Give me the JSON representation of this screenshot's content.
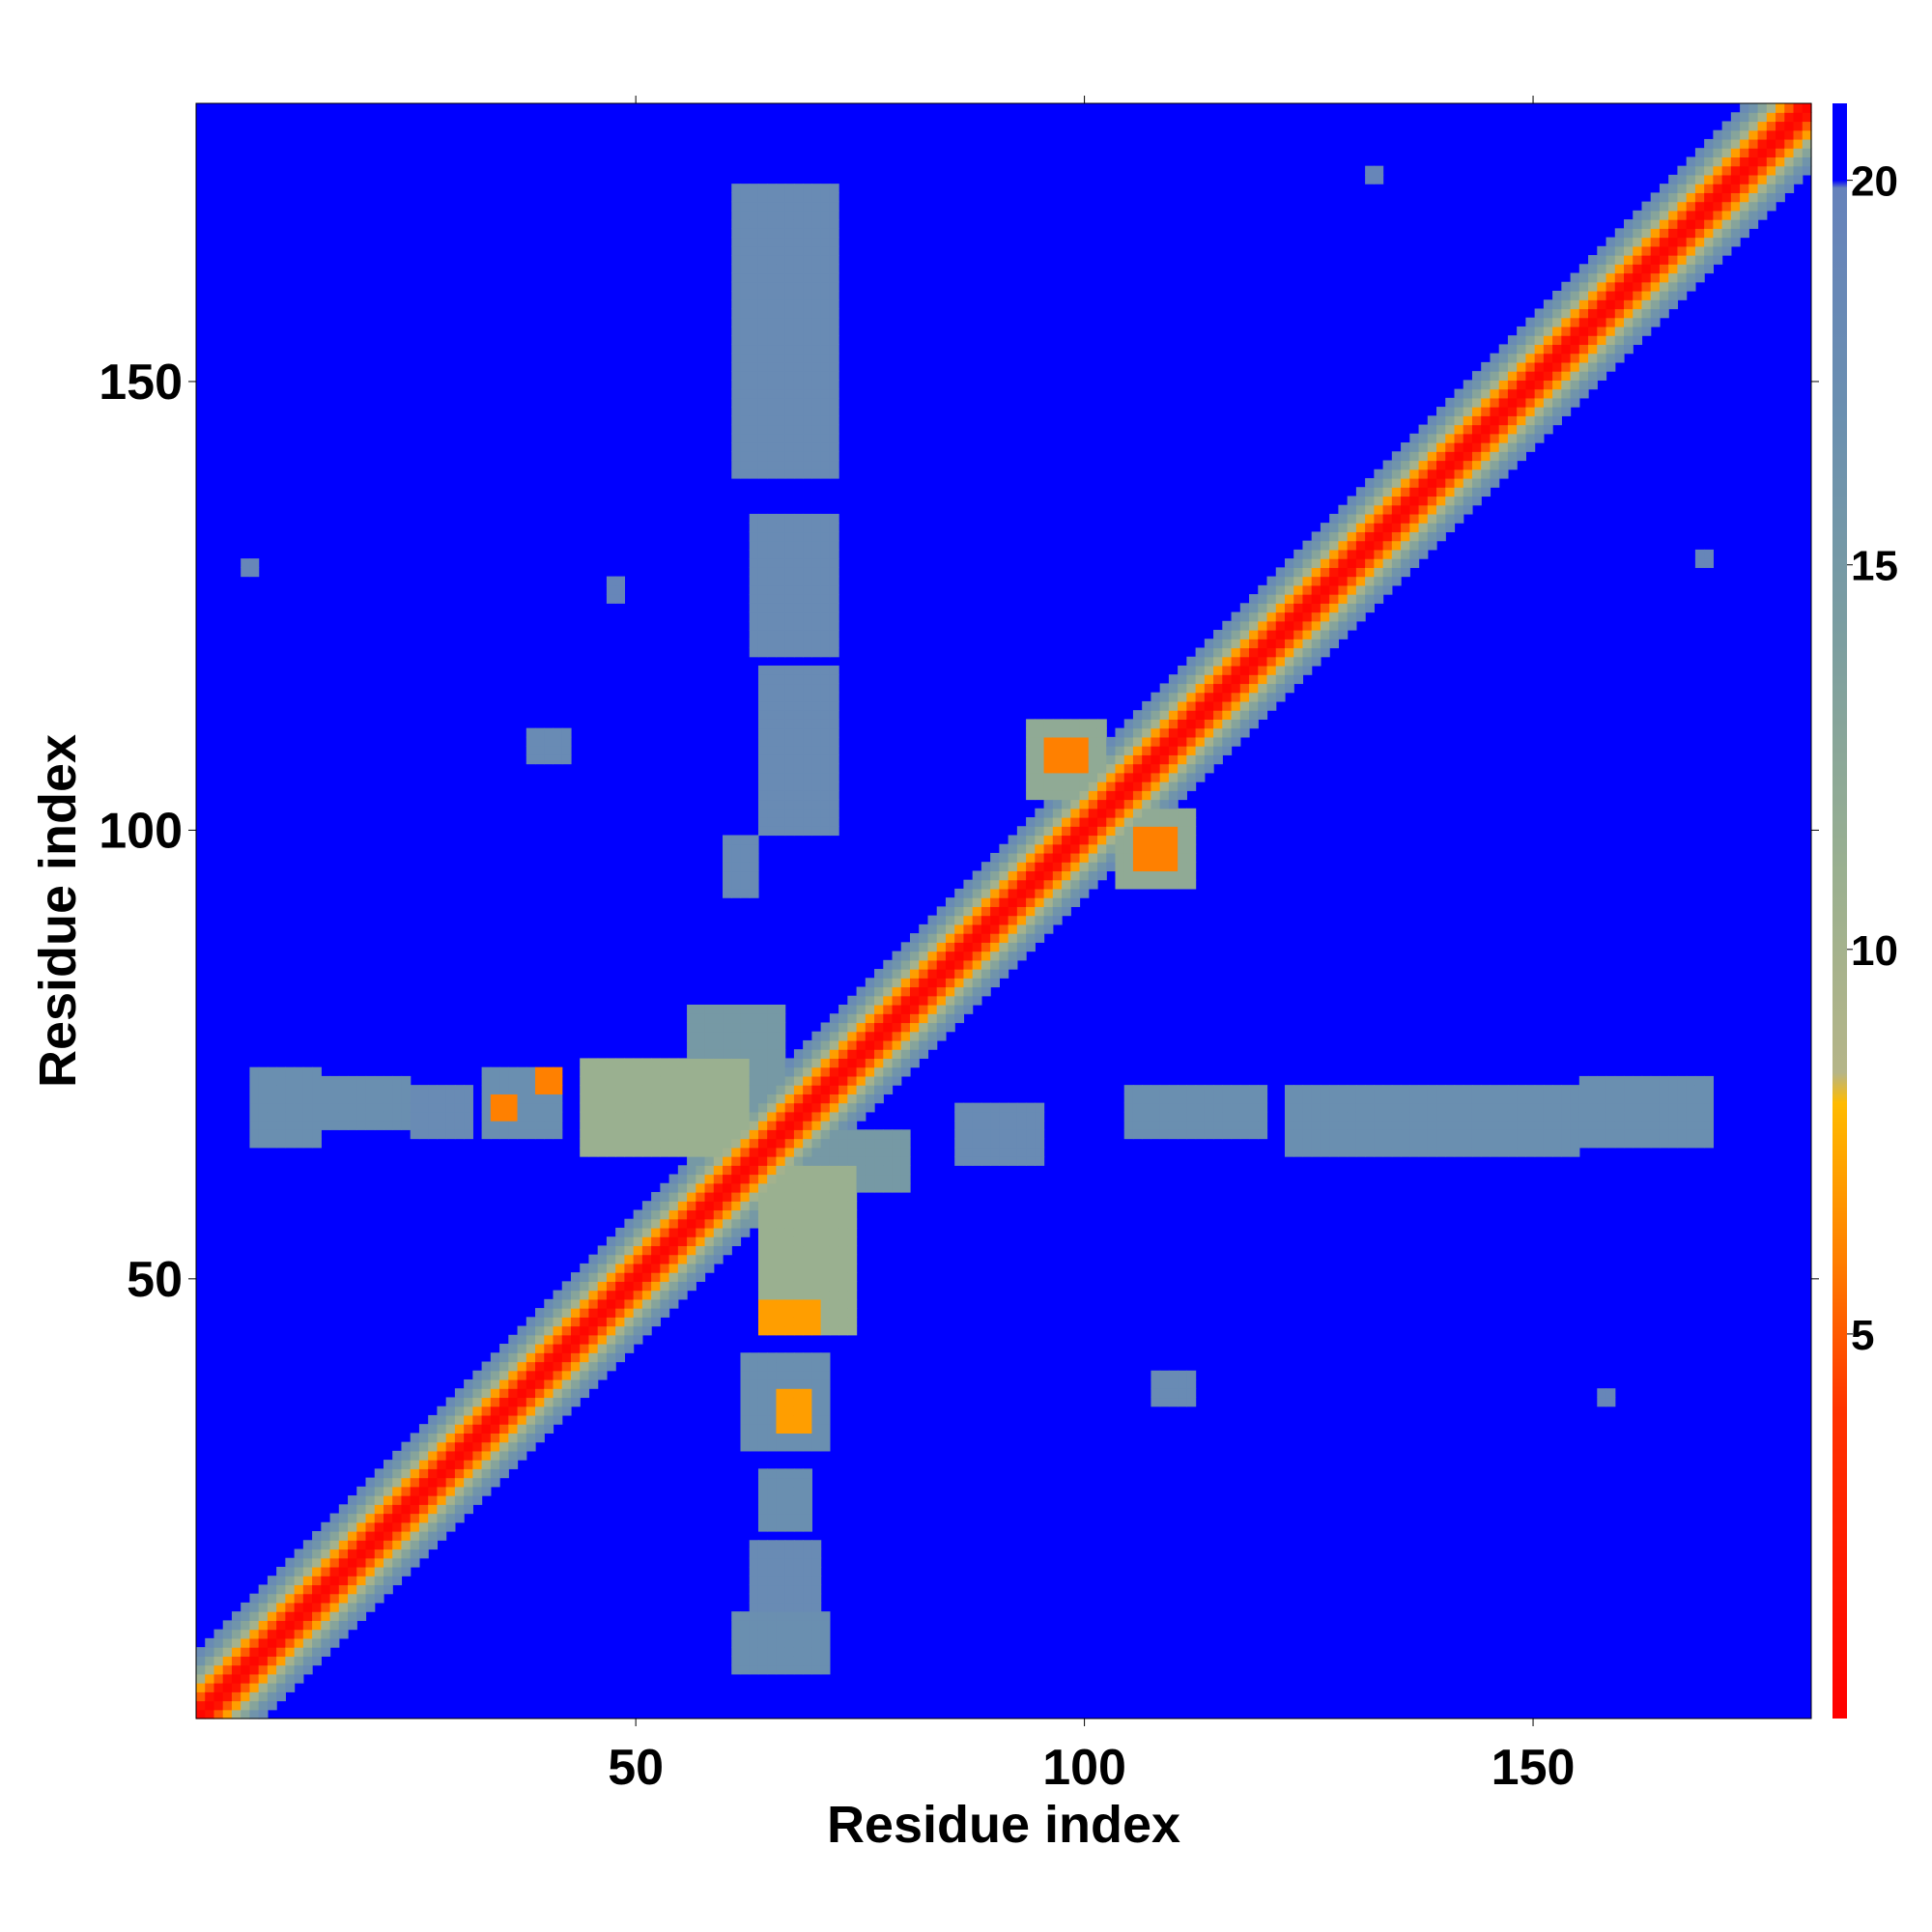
{
  "chart_data": {
    "type": "heatmap",
    "title": "",
    "xlabel": "Residue index",
    "ylabel": "Residue index",
    "n_residues": 181,
    "xlim": [
      1,
      181
    ],
    "ylim": [
      1,
      181
    ],
    "x_ticks": [
      {
        "value": 50,
        "label": "50"
      },
      {
        "value": 100,
        "label": "100"
      },
      {
        "value": 150,
        "label": "150"
      }
    ],
    "y_ticks": [
      {
        "value": 50,
        "label": "50"
      },
      {
        "value": 100,
        "label": "100"
      },
      {
        "value": 150,
        "label": "150"
      }
    ],
    "colorbar": {
      "range": [
        0,
        21
      ],
      "ticks": [
        {
          "value": 5,
          "label": "5"
        },
        {
          "value": 10,
          "label": "10"
        },
        {
          "value": 15,
          "label": "15"
        },
        {
          "value": 20,
          "label": "20"
        }
      ],
      "stops": [
        {
          "value": 0,
          "color": "#ff0000"
        },
        {
          "value": 4,
          "color": "#ff3300"
        },
        {
          "value": 6,
          "color": "#ff8000"
        },
        {
          "value": 8,
          "color": "#ffbb00"
        },
        {
          "value": 8.4,
          "color": "#b5b588"
        },
        {
          "value": 11,
          "color": "#9ab090"
        },
        {
          "value": 14,
          "color": "#7c9ea0"
        },
        {
          "value": 17,
          "color": "#6a8fb0"
        },
        {
          "value": 19.9,
          "color": "#6682bb"
        },
        {
          "value": 20,
          "color": "#0000ff"
        },
        {
          "value": 21,
          "color": "#0000ff"
        }
      ]
    },
    "background_value": 21,
    "diagonal_profile": [
      {
        "offset": 0,
        "value": 0.5
      },
      {
        "offset": 1,
        "value": 1.5
      },
      {
        "offset": 2,
        "value": 5
      },
      {
        "offset": 3,
        "value": 7
      },
      {
        "offset": 4,
        "value": 10
      },
      {
        "offset": 5,
        "value": 13
      },
      {
        "offset": 6,
        "value": 16
      },
      {
        "offset": 7,
        "value": 18
      }
    ],
    "contact_regions": [
      {
        "x": [
          56,
          66
        ],
        "y": [
          56,
          80
        ],
        "value": 15
      },
      {
        "x": [
          60,
          80
        ],
        "y": [
          60,
          66
        ],
        "value": 15
      },
      {
        "x": [
          64,
          74
        ],
        "y": [
          44,
          62
        ],
        "value": 11
      },
      {
        "x": [
          44,
          62
        ],
        "y": [
          64,
          74
        ],
        "value": 11
      },
      {
        "x": [
          94,
          102
        ],
        "y": [
          104,
          112
        ],
        "value": 12
      },
      {
        "x": [
          104,
          112
        ],
        "y": [
          94,
          102
        ],
        "value": 12
      },
      {
        "x": [
          96,
          100
        ],
        "y": [
          107,
          110
        ],
        "value": 6
      },
      {
        "x": [
          106,
          110
        ],
        "y": [
          96,
          100
        ],
        "value": 6
      },
      {
        "x": [
          7,
          14
        ],
        "y": [
          65,
          73
        ],
        "value": 17
      },
      {
        "x": [
          15,
          24
        ],
        "y": [
          67,
          72
        ],
        "value": 17
      },
      {
        "x": [
          25,
          31
        ],
        "y": [
          66,
          71
        ],
        "value": 18
      },
      {
        "x": [
          33,
          41
        ],
        "y": [
          66,
          73
        ],
        "value": 17
      },
      {
        "x": [
          34,
          36
        ],
        "y": [
          68,
          70
        ],
        "value": 6
      },
      {
        "x": [
          39,
          41
        ],
        "y": [
          71,
          73
        ],
        "value": 6
      },
      {
        "x": [
          44,
          50
        ],
        "y": [
          66,
          73
        ],
        "value": 15
      },
      {
        "x": [
          86,
          95
        ],
        "y": [
          63,
          69
        ],
        "value": 18
      },
      {
        "x": [
          105,
          120
        ],
        "y": [
          66,
          71
        ],
        "value": 17
      },
      {
        "x": [
          123,
          155
        ],
        "y": [
          64,
          71
        ],
        "value": 17
      },
      {
        "x": [
          156,
          170
        ],
        "y": [
          65,
          72
        ],
        "value": 17
      },
      {
        "x": [
          61,
          71
        ],
        "y": [
          6,
          12
        ],
        "value": 17
      },
      {
        "x": [
          63,
          70
        ],
        "y": [
          13,
          20
        ],
        "value": 18
      },
      {
        "x": [
          64,
          69
        ],
        "y": [
          22,
          28
        ],
        "value": 17
      },
      {
        "x": [
          62,
          71
        ],
        "y": [
          31,
          41
        ],
        "value": 17
      },
      {
        "x": [
          66,
          69
        ],
        "y": [
          33,
          37
        ],
        "value": 7
      },
      {
        "x": [
          64,
          70
        ],
        "y": [
          44,
          47
        ],
        "value": 7
      },
      {
        "x": [
          64,
          72
        ],
        "y": [
          100,
          118
        ],
        "value": 18
      },
      {
        "x": [
          63,
          72
        ],
        "y": [
          120,
          135
        ],
        "value": 18
      },
      {
        "x": [
          61,
          72
        ],
        "y": [
          140,
          172
        ],
        "value": 18
      },
      {
        "x": [
          60,
          63
        ],
        "y": [
          93,
          99
        ],
        "value": 18
      },
      {
        "x": [
          38,
          42
        ],
        "y": [
          108,
          111
        ],
        "value": 18
      },
      {
        "x": [
          108,
          112
        ],
        "y": [
          36,
          39
        ],
        "value": 18
      },
      {
        "x": [
          132,
          133
        ],
        "y": [
          173,
          174
        ],
        "value": 19
      },
      {
        "x": [
          6,
          7
        ],
        "y": [
          129,
          130
        ],
        "value": 19
      },
      {
        "x": [
          47,
          48
        ],
        "y": [
          126,
          128
        ],
        "value": 19
      },
      {
        "x": [
          169,
          170
        ],
        "y": [
          130,
          131
        ],
        "value": 19
      },
      {
        "x": [
          158,
          159
        ],
        "y": [
          36,
          37
        ],
        "value": 19
      }
    ]
  }
}
